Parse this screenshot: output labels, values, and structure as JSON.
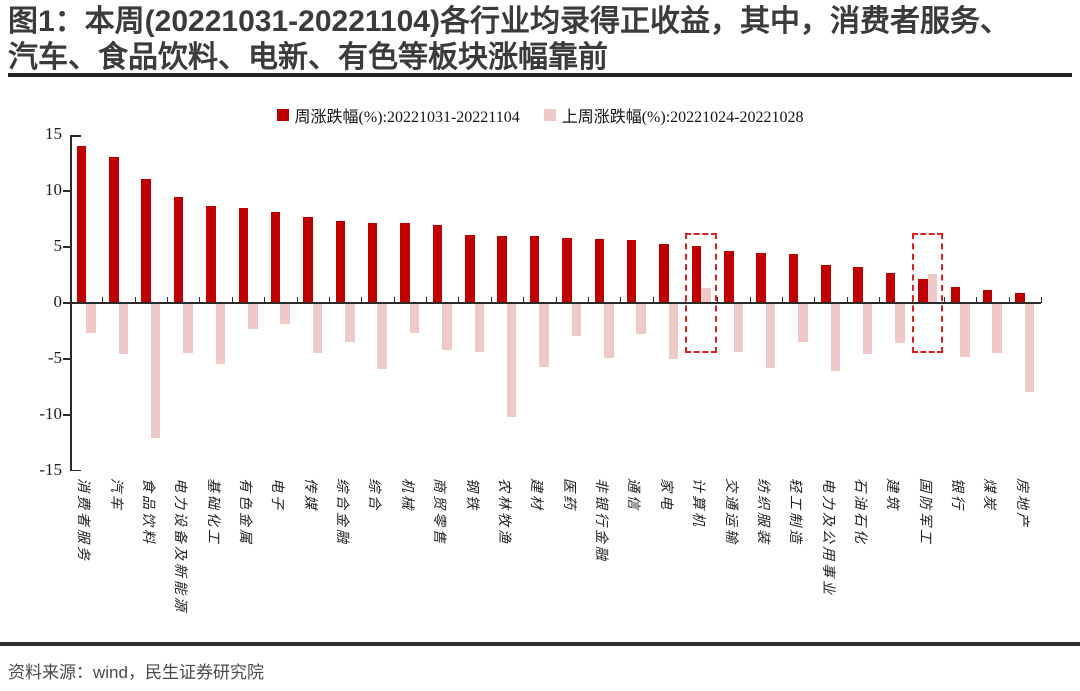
{
  "figure_title": {
    "line1": "图1：本周(20221031-20221104)各行业均录得正收益，其中，消费者服务、",
    "line2": "汽车、食品饮料、电新、有色等板块涨幅靠前"
  },
  "source_note": "资料来源：wind，民生证券研究院",
  "colors": {
    "this_week": "#c00000",
    "last_week": "#efc8c8",
    "highlight_box": "#e02020",
    "axis": "#2b2b2b"
  },
  "chart_data": {
    "type": "bar",
    "title": "图1：本周(20221031-20221104)各行业均录得正收益，其中，消费者服务、汽车、食品饮料、电新、有色等板块涨幅靠前",
    "categories": [
      "消费者服务",
      "汽车",
      "食品饮料",
      "电力设备及新能源",
      "基础化工",
      "有色金属",
      "电子",
      "传媒",
      "综合金融",
      "综合",
      "机械",
      "商贸零售",
      "钢铁",
      "农林牧渔",
      "建材",
      "医药",
      "非银行金融",
      "通信",
      "家电",
      "计算机",
      "交通运输",
      "纺织服装",
      "轻工制造",
      "电力及公用事业",
      "石油石化",
      "建筑",
      "国防军工",
      "银行",
      "煤炭",
      "房地产"
    ],
    "series": [
      {
        "name": "周涨跌幅(%):20221031-20221104",
        "color": "#c00000",
        "values": [
          14.0,
          13.0,
          11.1,
          9.5,
          8.7,
          8.5,
          8.1,
          7.7,
          7.3,
          7.1,
          7.1,
          7.0,
          6.1,
          6.0,
          6.0,
          5.8,
          5.7,
          5.6,
          5.3,
          5.1,
          4.6,
          4.5,
          4.4,
          3.4,
          3.2,
          2.7,
          2.1,
          1.4,
          1.2,
          0.9
        ]
      },
      {
        "name": "上周涨跌幅(%):20221024-20221028",
        "color": "#efc8c8",
        "values": [
          -2.6,
          -4.5,
          -12.0,
          -4.4,
          -5.4,
          -2.2,
          -1.8,
          -4.4,
          -3.4,
          -5.8,
          -2.6,
          -4.1,
          -4.3,
          -10.1,
          -5.6,
          -2.9,
          -4.8,
          -2.7,
          -4.9,
          1.3,
          -4.3,
          -5.7,
          -3.4,
          -6.0,
          -4.5,
          -3.5,
          2.6,
          -4.7,
          -4.4,
          -7.9
        ]
      }
    ],
    "ylim": [
      -15,
      15
    ],
    "yticks": [
      15,
      10,
      5,
      0,
      -5,
      -10,
      -15
    ],
    "xlabel": "",
    "ylabel": "",
    "grid": false,
    "legend_position": "top",
    "highlighted_categories": [
      "计算机",
      "国防军工"
    ]
  }
}
